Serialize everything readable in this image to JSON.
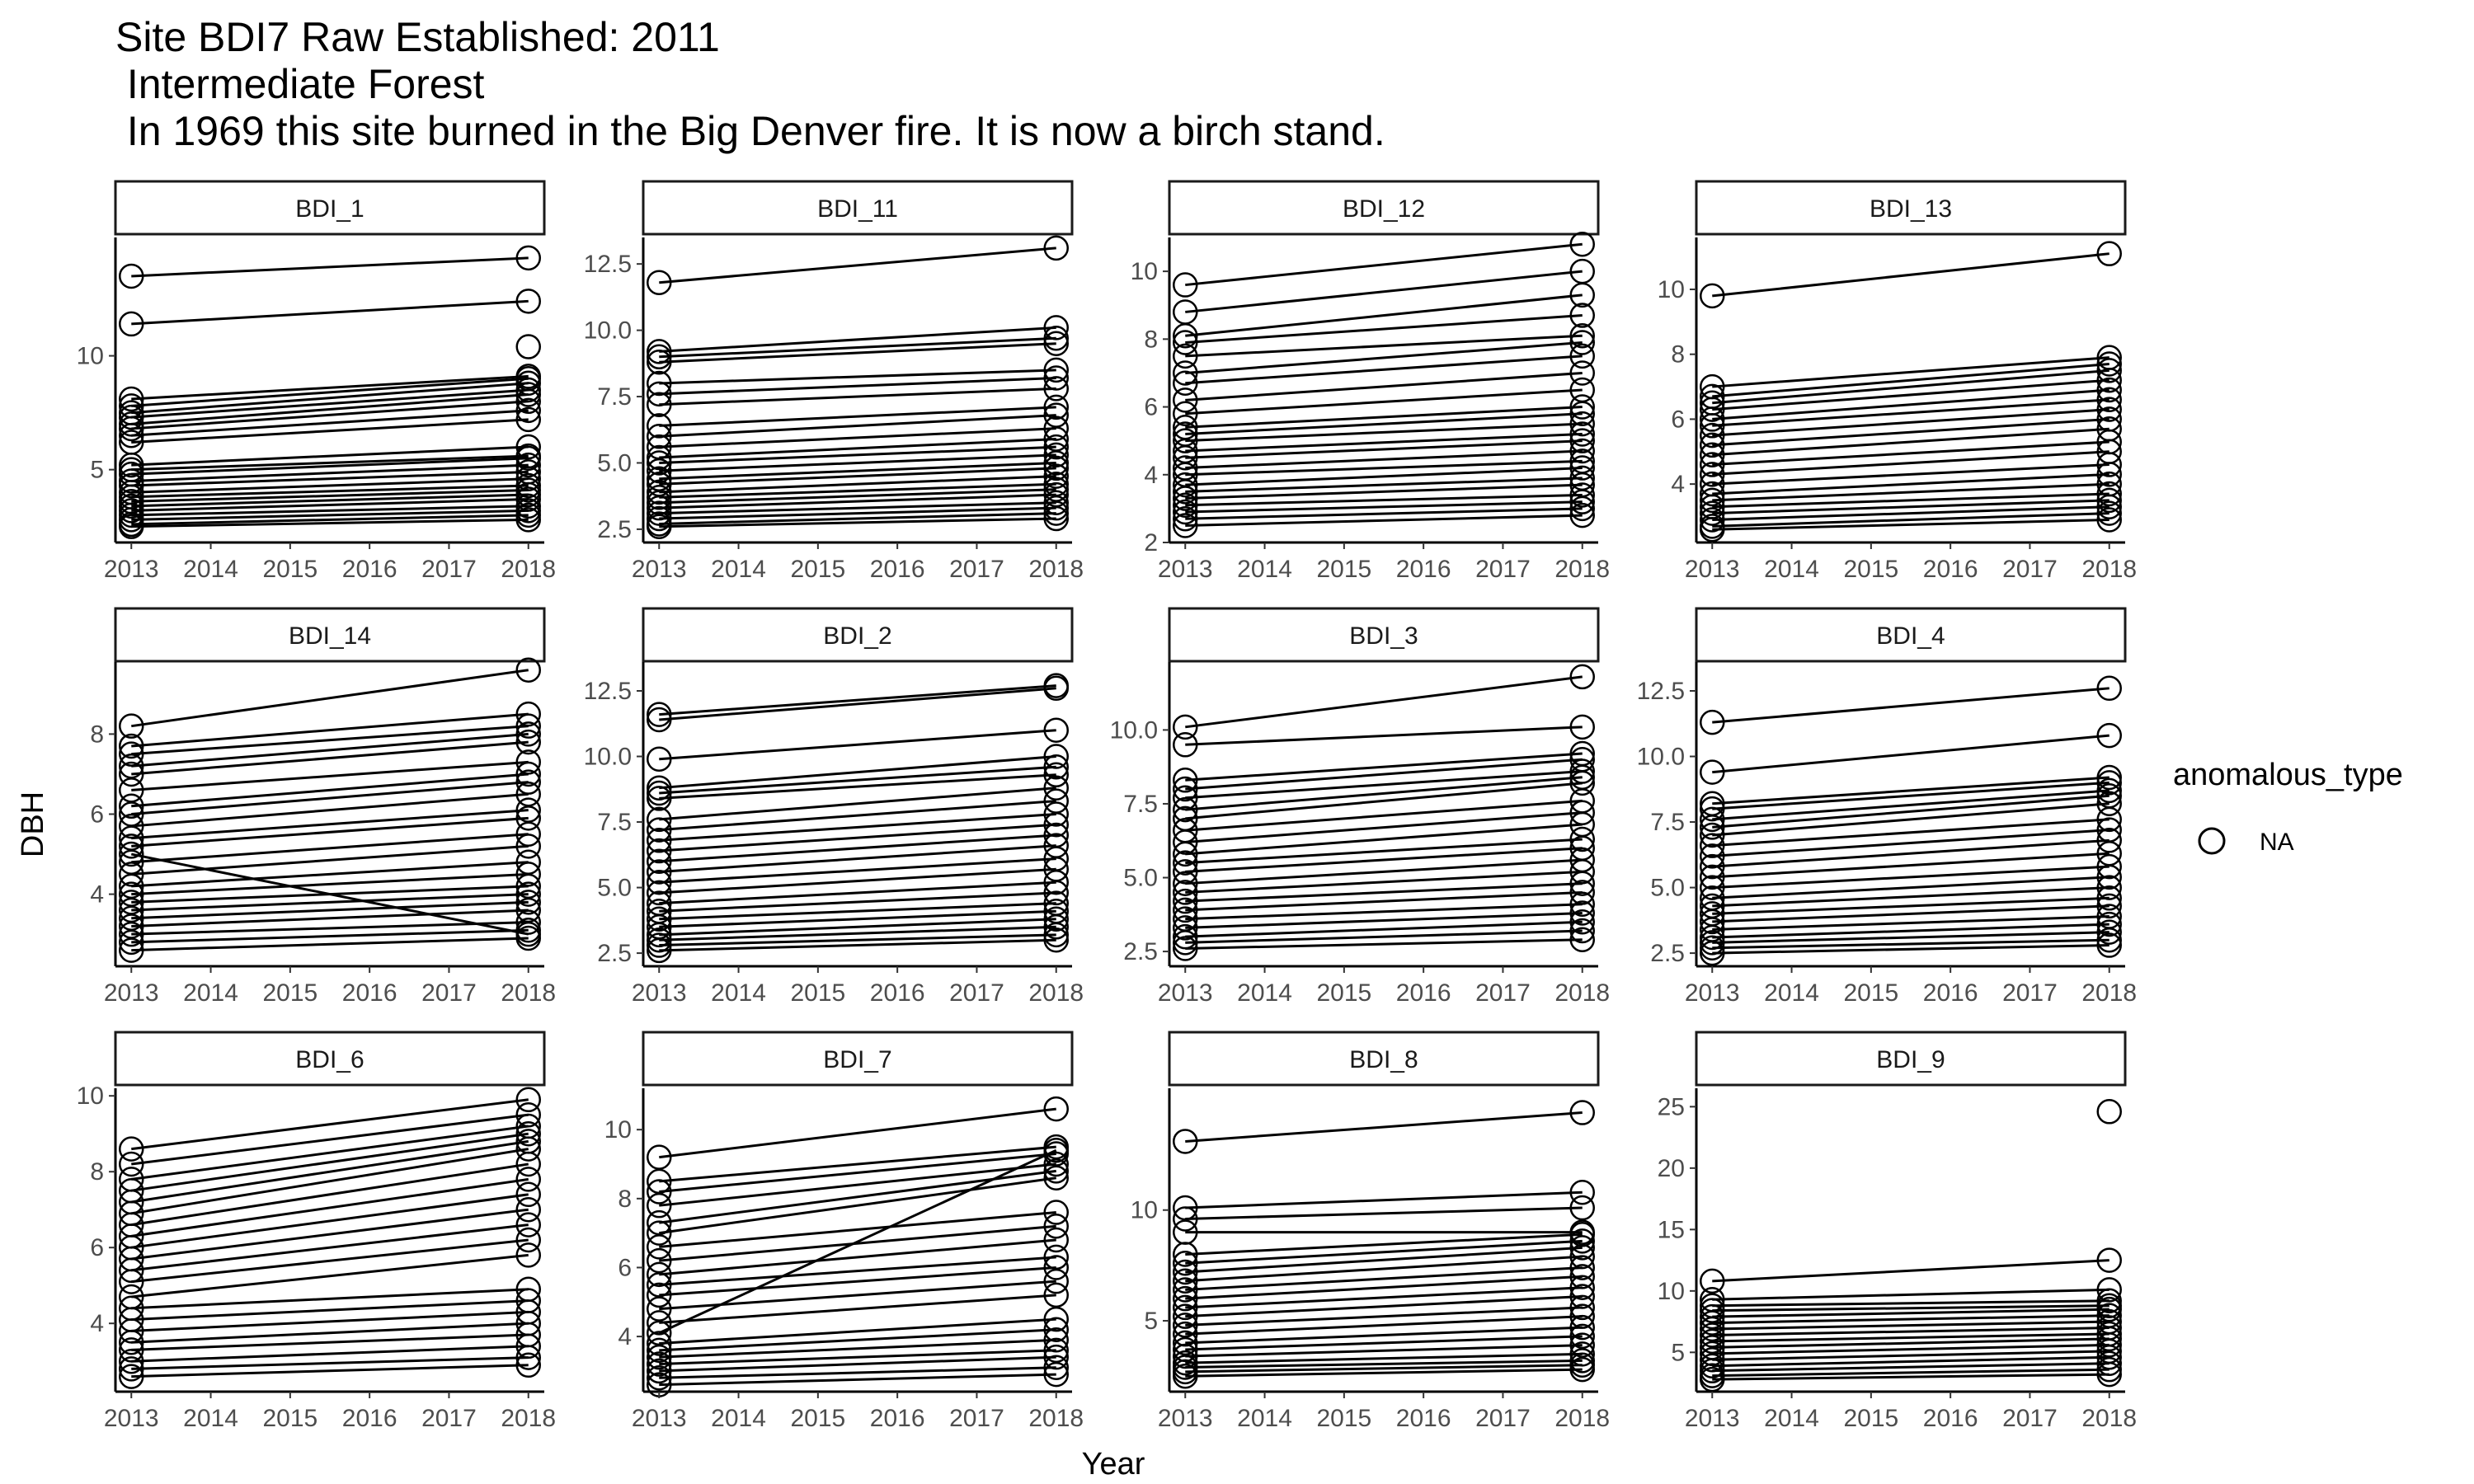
{
  "title": {
    "line1": "Site BDI7 Raw Established: 2011",
    "line2": " Intermediate Forest",
    "line3": " In 1969 this site burned in the Big Denver fire. It is now a birch stand."
  },
  "chart_data": {
    "type": "line",
    "xlabel": "Year",
    "ylabel": "DBH",
    "x_ticks": [
      "2013",
      "2014",
      "2015",
      "2016",
      "2017",
      "2018"
    ],
    "xlim": [
      2012.8,
      2018.2
    ],
    "legend": {
      "title": "anomalous_type",
      "entries": [
        "NA"
      ],
      "marker": "open-circle",
      "placement": "right"
    },
    "grid": false,
    "panels": [
      {
        "name": "BDI_1",
        "ylim": [
          1.8,
          15.2
        ],
        "yticks": [
          5,
          10
        ],
        "pairs": [
          [
            13.5,
            14.3
          ],
          [
            11.4,
            12.4
          ],
          [
            8.1,
            9.1
          ],
          [
            7.8,
            9.0
          ],
          [
            7.5,
            8.8
          ],
          [
            7.3,
            8.5
          ],
          [
            7.0,
            8.3
          ],
          [
            6.8,
            8.0
          ],
          [
            6.5,
            7.6
          ],
          [
            6.2,
            7.2
          ],
          [
            5.2,
            6.0
          ],
          [
            5.0,
            5.6
          ],
          [
            4.8,
            5.5
          ],
          [
            4.5,
            5.2
          ],
          [
            4.3,
            4.9
          ],
          [
            4.0,
            4.6
          ],
          [
            3.8,
            4.3
          ],
          [
            3.6,
            4.1
          ],
          [
            3.4,
            3.9
          ],
          [
            3.2,
            3.7
          ],
          [
            3.0,
            3.4
          ],
          [
            2.8,
            3.2
          ],
          [
            2.6,
            3.0
          ],
          [
            2.5,
            2.8
          ]
        ],
        "extra": [
          [
            2018,
            10.4
          ]
        ]
      },
      {
        "name": "BDI_11",
        "ylim": [
          2.0,
          13.5
        ],
        "yticks": [
          2.5,
          5.0,
          7.5,
          10.0,
          12.5
        ],
        "pairs": [
          [
            11.8,
            13.1
          ],
          [
            9.2,
            10.1
          ],
          [
            9.0,
            9.7
          ],
          [
            8.8,
            9.5
          ],
          [
            8.0,
            8.5
          ],
          [
            7.6,
            8.2
          ],
          [
            7.2,
            7.8
          ],
          [
            6.4,
            7.1
          ],
          [
            6.0,
            6.8
          ],
          [
            5.6,
            6.3
          ],
          [
            5.2,
            5.9
          ],
          [
            5.0,
            5.6
          ],
          [
            4.7,
            5.3
          ],
          [
            4.4,
            5.0
          ],
          [
            4.2,
            4.8
          ],
          [
            3.9,
            4.5
          ],
          [
            3.7,
            4.2
          ],
          [
            3.5,
            4.0
          ],
          [
            3.3,
            3.8
          ],
          [
            3.1,
            3.5
          ],
          [
            2.9,
            3.3
          ],
          [
            2.7,
            3.1
          ],
          [
            2.6,
            2.9
          ]
        ],
        "extra": []
      },
      {
        "name": "BDI_12",
        "ylim": [
          2.0,
          11.0
        ],
        "yticks": [
          2,
          4,
          6,
          8,
          10
        ],
        "pairs": [
          [
            9.6,
            10.8
          ],
          [
            8.8,
            10.0
          ],
          [
            8.1,
            9.3
          ],
          [
            7.9,
            8.7
          ],
          [
            7.5,
            8.1
          ],
          [
            7.0,
            7.9
          ],
          [
            6.7,
            7.5
          ],
          [
            6.2,
            7.0
          ],
          [
            5.8,
            6.5
          ],
          [
            5.4,
            6.0
          ],
          [
            5.2,
            5.8
          ],
          [
            5.0,
            5.5
          ],
          [
            4.7,
            5.2
          ],
          [
            4.5,
            5.0
          ],
          [
            4.2,
            4.7
          ],
          [
            4.0,
            4.4
          ],
          [
            3.7,
            4.2
          ],
          [
            3.5,
            3.9
          ],
          [
            3.3,
            3.7
          ],
          [
            3.1,
            3.4
          ],
          [
            2.9,
            3.2
          ],
          [
            2.7,
            3.0
          ],
          [
            2.5,
            2.8
          ]
        ],
        "extra": []
      },
      {
        "name": "BDI_13",
        "ylim": [
          2.2,
          11.6
        ],
        "yticks": [
          4,
          6,
          8,
          10
        ],
        "pairs": [
          [
            9.8,
            11.1
          ],
          [
            7.0,
            7.9
          ],
          [
            6.7,
            7.7
          ],
          [
            6.5,
            7.5
          ],
          [
            6.3,
            7.2
          ],
          [
            6.0,
            6.9
          ],
          [
            5.8,
            6.6
          ],
          [
            5.5,
            6.3
          ],
          [
            5.2,
            6.0
          ],
          [
            4.9,
            5.7
          ],
          [
            4.6,
            5.3
          ],
          [
            4.3,
            5.0
          ],
          [
            4.0,
            4.6
          ],
          [
            3.7,
            4.3
          ],
          [
            3.5,
            4.0
          ],
          [
            3.3,
            3.7
          ],
          [
            3.1,
            3.5
          ],
          [
            2.9,
            3.3
          ],
          [
            2.7,
            3.1
          ],
          [
            2.6,
            2.9
          ]
        ],
        "extra": []
      },
      {
        "name": "BDI_14",
        "ylim": [
          2.2,
          9.8
        ],
        "yticks": [
          4,
          6,
          8
        ],
        "pairs": [
          [
            8.2,
            9.6
          ],
          [
            7.7,
            8.5
          ],
          [
            7.5,
            8.2
          ],
          [
            7.2,
            8.0
          ],
          [
            7.0,
            7.8
          ],
          [
            6.6,
            7.3
          ],
          [
            6.2,
            7.0
          ],
          [
            6.0,
            6.8
          ],
          [
            5.7,
            6.5
          ],
          [
            5.4,
            6.1
          ],
          [
            5.2,
            5.9
          ],
          [
            5.0,
            3.0
          ],
          [
            4.8,
            5.5
          ],
          [
            4.5,
            5.2
          ],
          [
            4.2,
            4.8
          ],
          [
            4.0,
            4.5
          ],
          [
            3.8,
            4.2
          ],
          [
            3.6,
            4.0
          ],
          [
            3.4,
            3.8
          ],
          [
            3.2,
            3.6
          ],
          [
            3.0,
            3.3
          ],
          [
            2.8,
            3.1
          ],
          [
            2.6,
            2.9
          ]
        ],
        "extra": []
      },
      {
        "name": "BDI_2",
        "ylim": [
          2.0,
          13.6
        ],
        "yticks": [
          2.5,
          5.0,
          7.5,
          10.0,
          12.5
        ],
        "pairs": [
          [
            11.6,
            12.7
          ],
          [
            11.4,
            12.6
          ],
          [
            9.9,
            11.0
          ],
          [
            8.8,
            10.0
          ],
          [
            8.6,
            9.6
          ],
          [
            8.4,
            9.3
          ],
          [
            7.6,
            8.8
          ],
          [
            7.2,
            8.3
          ],
          [
            6.8,
            7.8
          ],
          [
            6.4,
            7.4
          ],
          [
            6.0,
            7.0
          ],
          [
            5.6,
            6.6
          ],
          [
            5.2,
            6.1
          ],
          [
            4.8,
            5.7
          ],
          [
            4.4,
            5.2
          ],
          [
            4.1,
            4.8
          ],
          [
            3.8,
            4.4
          ],
          [
            3.5,
            4.1
          ],
          [
            3.2,
            3.8
          ],
          [
            3.0,
            3.5
          ],
          [
            2.8,
            3.2
          ],
          [
            2.6,
            3.0
          ]
        ],
        "extra": []
      },
      {
        "name": "BDI_3",
        "ylim": [
          2.0,
          12.3
        ],
        "yticks": [
          2.5,
          5.0,
          7.5,
          10.0
        ],
        "pairs": [
          [
            10.1,
            11.8
          ],
          [
            9.5,
            10.1
          ],
          [
            8.3,
            9.2
          ],
          [
            8.0,
            9.0
          ],
          [
            7.7,
            8.6
          ],
          [
            7.3,
            8.4
          ],
          [
            7.0,
            8.2
          ],
          [
            6.6,
            7.6
          ],
          [
            6.2,
            7.2
          ],
          [
            5.8,
            6.8
          ],
          [
            5.5,
            6.3
          ],
          [
            5.2,
            6.0
          ],
          [
            4.8,
            5.6
          ],
          [
            4.5,
            5.2
          ],
          [
            4.2,
            4.8
          ],
          [
            3.9,
            4.5
          ],
          [
            3.6,
            4.1
          ],
          [
            3.3,
            3.8
          ],
          [
            3.0,
            3.5
          ],
          [
            2.8,
            3.2
          ],
          [
            2.6,
            2.9
          ]
        ],
        "extra": []
      },
      {
        "name": "BDI_4",
        "ylim": [
          2.0,
          13.6
        ],
        "yticks": [
          2.5,
          5.0,
          7.5,
          10.0,
          12.5
        ],
        "pairs": [
          [
            11.3,
            12.6
          ],
          [
            9.4,
            10.8
          ],
          [
            8.2,
            9.2
          ],
          [
            8.0,
            9.0
          ],
          [
            7.6,
            8.7
          ],
          [
            7.3,
            8.5
          ],
          [
            7.0,
            8.2
          ],
          [
            6.6,
            7.6
          ],
          [
            6.2,
            7.2
          ],
          [
            5.8,
            6.8
          ],
          [
            5.4,
            6.3
          ],
          [
            5.0,
            5.8
          ],
          [
            4.6,
            5.4
          ],
          [
            4.3,
            5.0
          ],
          [
            4.0,
            4.6
          ],
          [
            3.7,
            4.3
          ],
          [
            3.4,
            3.9
          ],
          [
            3.1,
            3.6
          ],
          [
            2.9,
            3.3
          ],
          [
            2.7,
            3.0
          ],
          [
            2.5,
            2.8
          ]
        ],
        "extra": []
      },
      {
        "name": "BDI_6",
        "ylim": [
          2.2,
          10.2
        ],
        "yticks": [
          4,
          6,
          8,
          10
        ],
        "pairs": [
          [
            8.6,
            9.9
          ],
          [
            8.2,
            9.5
          ],
          [
            7.8,
            9.2
          ],
          [
            7.5,
            9.0
          ],
          [
            7.2,
            8.8
          ],
          [
            6.9,
            8.6
          ],
          [
            6.6,
            8.2
          ],
          [
            6.3,
            7.8
          ],
          [
            6.0,
            7.4
          ],
          [
            5.7,
            7.0
          ],
          [
            5.4,
            6.6
          ],
          [
            5.1,
            6.2
          ],
          [
            4.7,
            5.8
          ],
          [
            4.4,
            4.9
          ],
          [
            4.1,
            4.6
          ],
          [
            3.8,
            4.3
          ],
          [
            3.5,
            4.0
          ],
          [
            3.3,
            3.7
          ],
          [
            3.0,
            3.4
          ],
          [
            2.8,
            3.1
          ],
          [
            2.6,
            2.9
          ]
        ],
        "extra": []
      },
      {
        "name": "BDI_7",
        "ylim": [
          2.4,
          11.2
        ],
        "yticks": [
          4,
          6,
          8,
          10
        ],
        "pairs": [
          [
            9.2,
            10.6
          ],
          [
            8.5,
            9.5
          ],
          [
            8.2,
            9.3
          ],
          [
            7.8,
            9.0
          ],
          [
            7.3,
            8.8
          ],
          [
            7.0,
            8.6
          ],
          [
            6.6,
            7.6
          ],
          [
            6.2,
            7.2
          ],
          [
            5.8,
            6.8
          ],
          [
            5.5,
            6.3
          ],
          [
            5.2,
            6.0
          ],
          [
            4.8,
            5.6
          ],
          [
            4.4,
            5.2
          ],
          [
            4.1,
            9.4
          ],
          [
            3.8,
            4.5
          ],
          [
            3.6,
            4.2
          ],
          [
            3.4,
            3.9
          ],
          [
            3.2,
            3.6
          ],
          [
            3.0,
            3.4
          ],
          [
            2.8,
            3.1
          ],
          [
            2.6,
            2.9
          ]
        ],
        "extra": []
      },
      {
        "name": "BDI_8",
        "ylim": [
          1.8,
          15.5
        ],
        "yticks": [
          5,
          10
        ],
        "pairs": [
          [
            13.1,
            14.4
          ],
          [
            10.1,
            10.8
          ],
          [
            9.6,
            10.1
          ],
          [
            9.0,
            9.0
          ],
          [
            8.0,
            8.9
          ],
          [
            7.6,
            8.6
          ],
          [
            7.2,
            8.3
          ],
          [
            6.8,
            7.9
          ],
          [
            6.4,
            7.4
          ],
          [
            6.0,
            7.0
          ],
          [
            5.6,
            6.5
          ],
          [
            5.2,
            6.1
          ],
          [
            4.8,
            5.6
          ],
          [
            4.4,
            5.2
          ],
          [
            4.0,
            4.7
          ],
          [
            3.7,
            4.3
          ],
          [
            3.4,
            3.9
          ],
          [
            3.1,
            3.5
          ],
          [
            2.9,
            3.2
          ],
          [
            2.7,
            3.0
          ],
          [
            2.5,
            2.8
          ]
        ],
        "extra": []
      },
      {
        "name": "BDI_9",
        "ylim": [
          1.8,
          26.5
        ],
        "yticks": [
          5,
          10,
          15,
          20,
          25
        ],
        "pairs": [
          [
            10.8,
            12.5
          ],
          [
            9.3,
            10.1
          ],
          [
            8.8,
            9.2
          ],
          [
            8.4,
            8.8
          ],
          [
            7.9,
            8.5
          ],
          [
            7.4,
            8.0
          ],
          [
            6.9,
            7.5
          ],
          [
            6.4,
            7.0
          ],
          [
            5.9,
            6.5
          ],
          [
            5.4,
            6.1
          ],
          [
            4.9,
            5.6
          ],
          [
            4.4,
            5.1
          ],
          [
            3.9,
            4.6
          ],
          [
            3.5,
            4.1
          ],
          [
            3.1,
            3.6
          ],
          [
            2.8,
            3.2
          ]
        ],
        "extra": [
          [
            2018,
            24.6
          ]
        ]
      }
    ]
  }
}
